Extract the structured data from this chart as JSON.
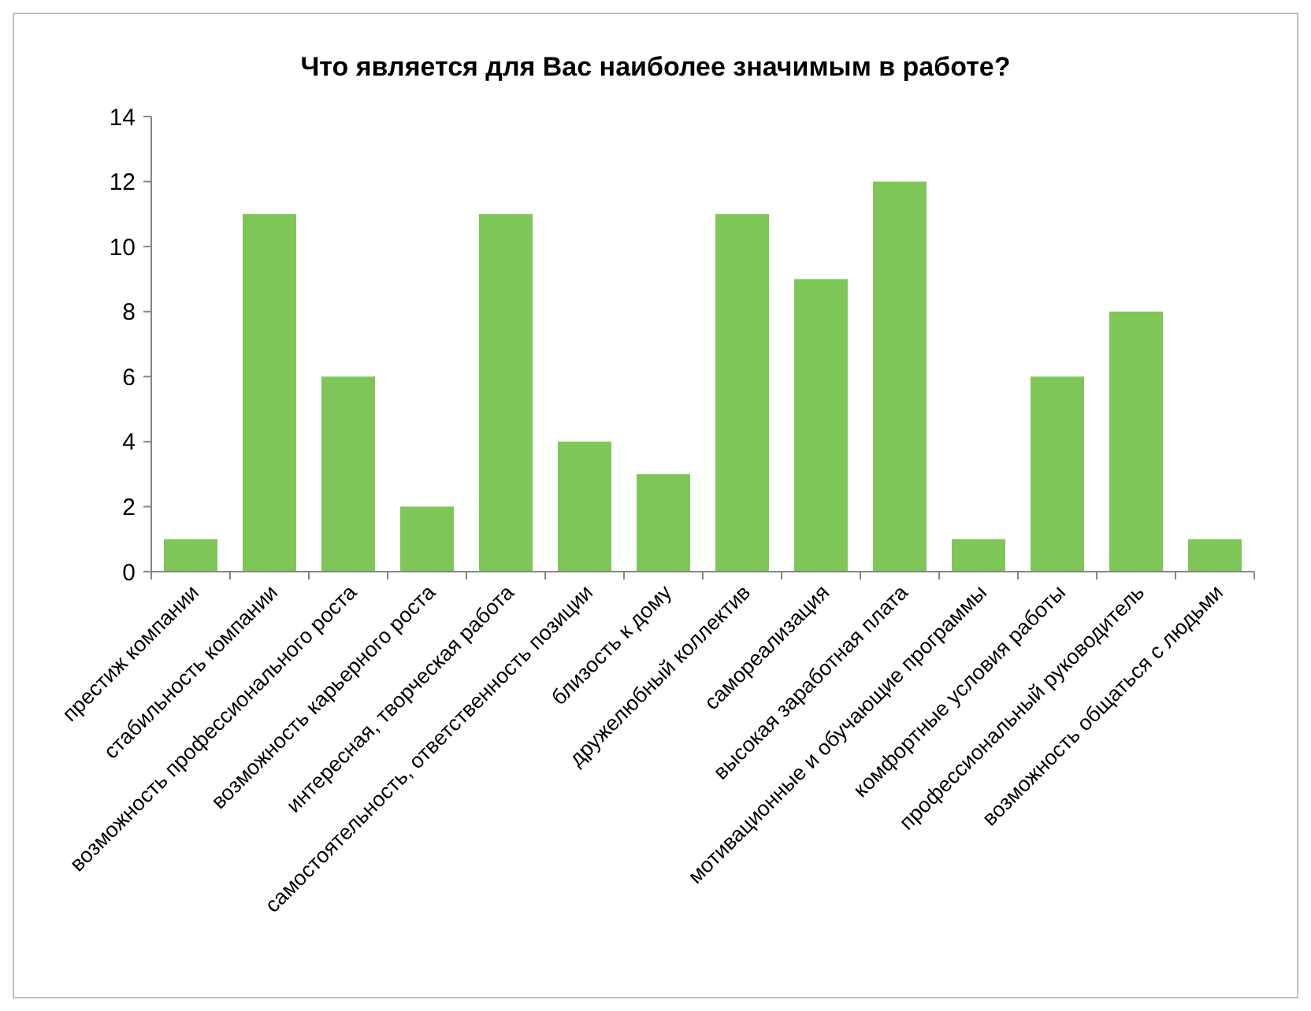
{
  "chart_data": {
    "type": "bar",
    "title": "Что является для Вас наиболее значимым в работе?",
    "categories": [
      "престиж компании",
      "стабильность компании",
      "возможность профессионального роста",
      "возможность карьерного роста",
      "интересная, творческая работа",
      "самостоятельность, ответственность позиции",
      "близость к дому",
      "дружелюбный коллектив",
      "самореализация",
      "высокая заработная плата",
      "мотивационные и обучающие программы",
      "комфортные условия работы",
      "профессиональный руководитель",
      "возможность общаться с людьми"
    ],
    "values": [
      1,
      11,
      6,
      2,
      11,
      4,
      3,
      11,
      9,
      12,
      1,
      6,
      8,
      1
    ],
    "color": "#7fc659",
    "ylim": [
      0,
      14
    ],
    "yticks": [
      0,
      2,
      4,
      6,
      8,
      10,
      12,
      14
    ],
    "grid": false
  }
}
